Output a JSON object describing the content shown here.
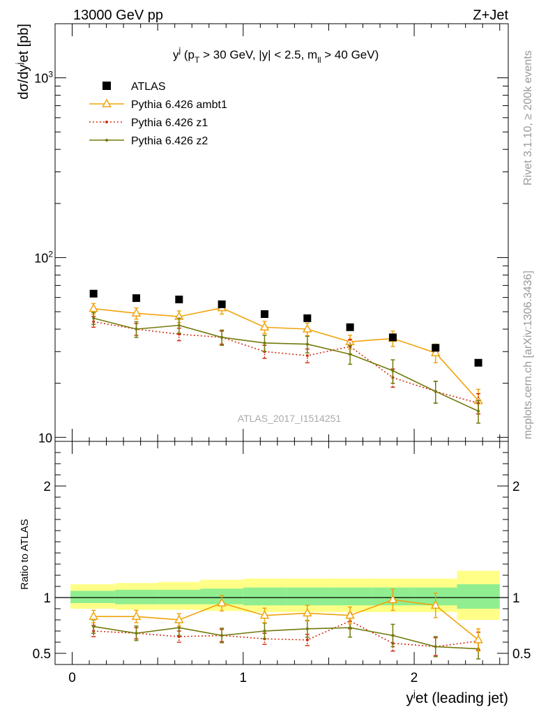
{
  "header": {
    "left": "13000 GeV pp",
    "right": "Z+Jet"
  },
  "side_labels": {
    "top": "Rivet 3.1.10, ≥ 200k events",
    "bottom": "mcplots.cern.ch [arXiv:1306.3436]"
  },
  "watermark": "ATLAS_2017_I1514251",
  "chart_data": [
    {
      "type": "scatter",
      "panel": "main",
      "title": "y^j (p_T > 30 GeV, |y| < 2.5, m_ll > 40 GeV)",
      "title_parts": {
        "var": "y",
        "var_sup": "j",
        "open": " (p",
        "pt_sub": "T",
        "mid": " > 30 GeV, |y| < 2.5, m",
        "m_sub": "ll",
        "close": " > 40 GeV)"
      },
      "ylabel": "dσ/dy^jet [pb]",
      "ylabel_parts": {
        "a": "dσ/dy",
        "sup": "j",
        "b": "et [pb]"
      },
      "yscale": "log",
      "ylim": [
        9.5,
        2000
      ],
      "xlim": [
        -0.1,
        2.55
      ],
      "yticks": [
        {
          "value": 10,
          "base": "10",
          "exp": ""
        },
        {
          "value": 100,
          "base": "10",
          "exp": "2"
        },
        {
          "value": 1000,
          "base": "10",
          "exp": "3"
        }
      ],
      "x": [
        0.125,
        0.375,
        0.625,
        0.875,
        1.125,
        1.375,
        1.625,
        1.875,
        2.125,
        2.375
      ],
      "series": [
        {
          "name": "ATLAS",
          "color": "#000000",
          "marker": "square",
          "values": [
            63,
            59.5,
            58.5,
            55,
            48.5,
            46,
            41,
            36,
            31.5,
            26
          ]
        },
        {
          "name": "Pythia 6.426 ambt1",
          "color": "#f0a30a",
          "marker": "open-triangle",
          "line": "solid",
          "values": [
            52,
            49,
            47,
            52.5,
            41,
            40,
            34,
            35.5,
            29.5,
            16
          ],
          "errors": [
            3.5,
            3.5,
            3.5,
            4,
            3.2,
            3.2,
            3,
            3.5,
            3.5,
            2.5
          ]
        },
        {
          "name": "Pythia 6.426 z1",
          "color": "#d42b11",
          "marker": "dot",
          "line": "dotted",
          "values": [
            44,
            40,
            37.5,
            36,
            30,
            28.5,
            32,
            21.5,
            18,
            15.5
          ],
          "errors": [
            3,
            3,
            3,
            3,
            2.5,
            2.5,
            3,
            2.5,
            2.5,
            2
          ]
        },
        {
          "name": "Pythia 6.426 z2",
          "color": "#727a0c",
          "marker": "dot",
          "line": "solid",
          "values": [
            46,
            40,
            42,
            36,
            33.5,
            33,
            29,
            23.5,
            18,
            14
          ],
          "errors": [
            3.5,
            4,
            4,
            3.5,
            3.5,
            3.5,
            3.5,
            3.5,
            2.5,
            2
          ]
        }
      ]
    },
    {
      "type": "line",
      "panel": "ratio",
      "ylabel": "Ratio to ATLAS",
      "xlabel": "y^jet (leading jet)",
      "xlabel_parts": {
        "a": "y",
        "sup": "j",
        "b": "et (leading jet)"
      },
      "ylim": [
        0.4,
        2.4
      ],
      "xlim": [
        -0.1,
        2.55
      ],
      "yticks": [
        0.5,
        1,
        2
      ],
      "ytick_labels": [
        "0.5",
        "1",
        "2"
      ],
      "xticks": [
        0,
        1,
        2
      ],
      "xtick_labels": [
        "0",
        "1",
        "2"
      ],
      "bins": [
        [
          -0.01,
          0.25
        ],
        [
          0.25,
          0.5
        ],
        [
          0.5,
          0.75
        ],
        [
          0.75,
          1.0
        ],
        [
          1.0,
          1.25
        ],
        [
          1.25,
          1.5
        ],
        [
          1.5,
          1.75
        ],
        [
          1.75,
          2.0
        ],
        [
          2.0,
          2.25
        ],
        [
          2.25,
          2.5
        ]
      ],
      "band_outer": {
        "color": "#ffff88",
        "low": [
          0.9,
          0.89,
          0.89,
          0.88,
          0.87,
          0.87,
          0.87,
          0.87,
          0.87,
          0.8
        ],
        "high": [
          1.12,
          1.13,
          1.14,
          1.16,
          1.17,
          1.17,
          1.17,
          1.17,
          1.17,
          1.24
        ]
      },
      "band_inner": {
        "color": "#90ee90",
        "low": [
          0.95,
          0.94,
          0.94,
          0.94,
          0.93,
          0.93,
          0.93,
          0.93,
          0.93,
          0.9
        ],
        "high": [
          1.06,
          1.07,
          1.07,
          1.08,
          1.09,
          1.09,
          1.09,
          1.09,
          1.09,
          1.12
        ]
      },
      "x": [
        0.125,
        0.375,
        0.625,
        0.875,
        1.125,
        1.375,
        1.625,
        1.875,
        2.125,
        2.375
      ],
      "series": [
        {
          "name": "Pythia 6.426 ambt1",
          "color": "#f0a30a",
          "marker": "open-triangle",
          "line": "solid",
          "values": [
            0.83,
            0.83,
            0.8,
            0.95,
            0.84,
            0.86,
            0.84,
            0.98,
            0.93,
            0.62
          ],
          "errors": [
            0.055,
            0.055,
            0.055,
            0.07,
            0.065,
            0.07,
            0.075,
            0.095,
            0.11,
            0.1
          ]
        },
        {
          "name": "Pythia 6.426 z1",
          "color": "#d42b11",
          "marker": "dot",
          "line": "dotted",
          "values": [
            0.7,
            0.68,
            0.65,
            0.66,
            0.63,
            0.62,
            0.79,
            0.59,
            0.56,
            0.61
          ],
          "errors": [
            0.05,
            0.05,
            0.05,
            0.055,
            0.05,
            0.05,
            0.07,
            0.07,
            0.08,
            0.08
          ]
        },
        {
          "name": "Pythia 6.426 z2",
          "color": "#727a0c",
          "marker": "dot",
          "line": "solid",
          "values": [
            0.74,
            0.68,
            0.73,
            0.66,
            0.7,
            0.72,
            0.73,
            0.66,
            0.56,
            0.54
          ],
          "errors": [
            0.06,
            0.065,
            0.07,
            0.065,
            0.07,
            0.075,
            0.085,
            0.1,
            0.09,
            0.09
          ]
        }
      ]
    }
  ]
}
